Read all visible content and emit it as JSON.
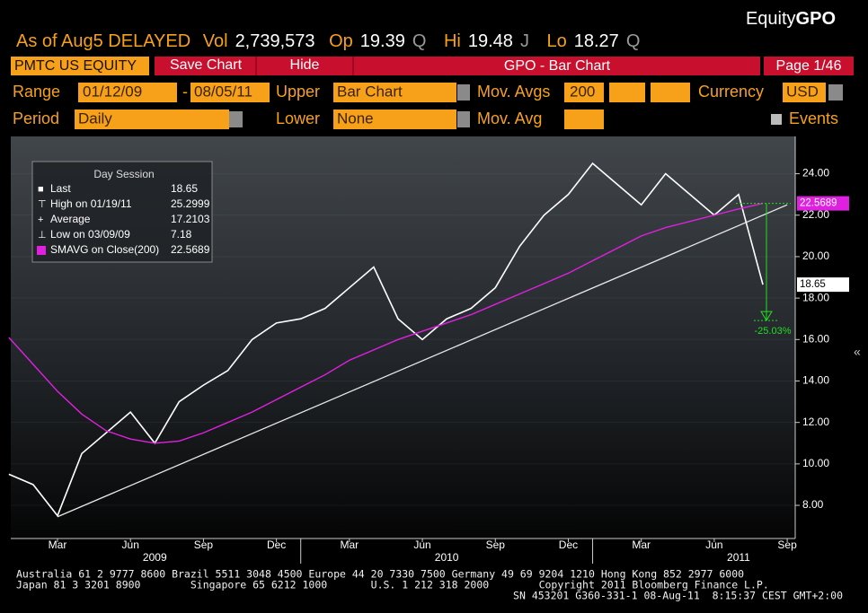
{
  "header": {
    "brand_prefix": "Equity",
    "brand": "GPO",
    "as_of": "As of Aug5 DELAYED",
    "quote": [
      {
        "label": "Vol",
        "value": "2,739,573"
      },
      {
        "label": "Op",
        "value": "19.39",
        "flag": "Q"
      },
      {
        "label": "Hi",
        "value": "19.48",
        "flag": "J"
      },
      {
        "label": "Lo",
        "value": "18.27",
        "flag": "Q"
      }
    ]
  },
  "toolbar": {
    "ticker": "PMTC US EQUITY",
    "buttons": [
      "Save Chart",
      "Hide"
    ],
    "title": "GPO - Bar Chart",
    "page": "Page 1/46"
  },
  "settings": {
    "range_label": "Range",
    "range_start": "01/12/09",
    "range_sep": "-",
    "range_end": "08/05/11",
    "upper_label": "Upper",
    "upper": "Bar Chart",
    "mov_avgs_label": "Mov. Avgs",
    "mov_avgs": "200",
    "currency_label": "Currency",
    "currency": "USD",
    "period_label": "Period",
    "period": "Daily",
    "lower_label": "Lower",
    "lower": "None",
    "mov_avg_label": "Mov. Avg",
    "events": "Events",
    "side_glyph": "«"
  },
  "chart_data": {
    "type": "line",
    "x": [
      "2009-01",
      "2009-02",
      "2009-03",
      "2009-04",
      "2009-05",
      "2009-06",
      "2009-07",
      "2009-08",
      "2009-09",
      "2009-10",
      "2009-11",
      "2009-12",
      "2010-01",
      "2010-02",
      "2010-03",
      "2010-04",
      "2010-05",
      "2010-06",
      "2010-07",
      "2010-08",
      "2010-09",
      "2010-10",
      "2010-11",
      "2010-12",
      "2011-01",
      "2011-02",
      "2011-03",
      "2011-04",
      "2011-05",
      "2011-06",
      "2011-07",
      "2011-08"
    ],
    "series": [
      {
        "name": "Last",
        "color": "#ffffff",
        "values": [
          9.5,
          9.0,
          7.5,
          10.5,
          11.5,
          12.5,
          11.0,
          13.0,
          13.8,
          14.5,
          16.0,
          16.8,
          17.0,
          17.5,
          18.5,
          19.5,
          17.0,
          16.0,
          17.0,
          17.5,
          18.5,
          20.5,
          22.0,
          23.0,
          24.5,
          23.5,
          22.5,
          24.0,
          23.0,
          22.0,
          23.0,
          18.65
        ]
      },
      {
        "name": "SMAVG on Close(200)",
        "color": "#e020e0",
        "values": [
          16.1,
          14.8,
          13.5,
          12.4,
          11.6,
          11.2,
          11.0,
          11.1,
          11.5,
          12.0,
          12.5,
          13.1,
          13.7,
          14.3,
          15.0,
          15.5,
          16.0,
          16.4,
          16.8,
          17.2,
          17.7,
          18.2,
          18.7,
          19.2,
          19.8,
          20.4,
          21.0,
          21.4,
          21.7,
          22.0,
          22.3,
          22.5689
        ]
      }
    ],
    "trend_line": {
      "x": [
        "2009-03",
        "2011-09"
      ],
      "values": [
        7.45,
        22.5
      ]
    },
    "drop_arrow": {
      "from": 22.5689,
      "to": 16.92,
      "label": "-25.03%"
    },
    "ylim": [
      6.4,
      25.8
    ],
    "yticks": [
      {
        "value": 8,
        "label": "8.00"
      },
      {
        "value": 10,
        "label": "10.00"
      },
      {
        "value": 12,
        "label": "12.00"
      },
      {
        "value": 14,
        "label": "14.00"
      },
      {
        "value": 16,
        "label": "16.00"
      },
      {
        "value": 18,
        "label": "18.00"
      },
      {
        "value": 20,
        "label": "20.00"
      },
      {
        "value": 22,
        "label": "22.00"
      },
      {
        "value": 24,
        "label": "24.00"
      }
    ],
    "xticks": [
      {
        "value": "2009-03",
        "label": "Mar"
      },
      {
        "value": "2009-06",
        "label": "Jun"
      },
      {
        "value": "2009-09",
        "label": "Sep"
      },
      {
        "value": "2009-12",
        "label": "Dec"
      },
      {
        "value": "2010-03",
        "label": "Mar"
      },
      {
        "value": "2010-06",
        "label": "Jun"
      },
      {
        "value": "2010-09",
        "label": "Sep"
      },
      {
        "value": "2010-12",
        "label": "Dec"
      },
      {
        "value": "2011-03",
        "label": "Mar"
      },
      {
        "value": "2011-06",
        "label": "Jun"
      },
      {
        "value": "2011-09",
        "label": "Sep"
      }
    ],
    "years": [
      "2009",
      "2010",
      "2011"
    ],
    "legend": {
      "title": "Day Session",
      "rows": [
        {
          "label": "Last",
          "value": 18.65
        },
        {
          "label": "High on 01/19/11",
          "value": 25.2999
        },
        {
          "label": "Average",
          "value": 17.2103
        },
        {
          "label": "Low on 03/09/09",
          "value": 7.18
        },
        {
          "label": "SMAVG on Close(200)",
          "value": 22.5689
        }
      ]
    }
  },
  "footer": {
    "lines": [
      "Australia 61 2 9777 8600 Brazil 5511 3048 4500 Europe 44 20 7330 7500 Germany 49 69 9204 1210 Hong Kong 852 2977 6000",
      "Japan 81 3 3201 8900        Singapore 65 6212 1000       U.S. 1 212 318 2000        Copyright 2011 Bloomberg Finance L.P.",
      "SN 453201 G360-331-1 08-Aug-11  8:15:37 CEST GMT+2:00"
    ]
  }
}
